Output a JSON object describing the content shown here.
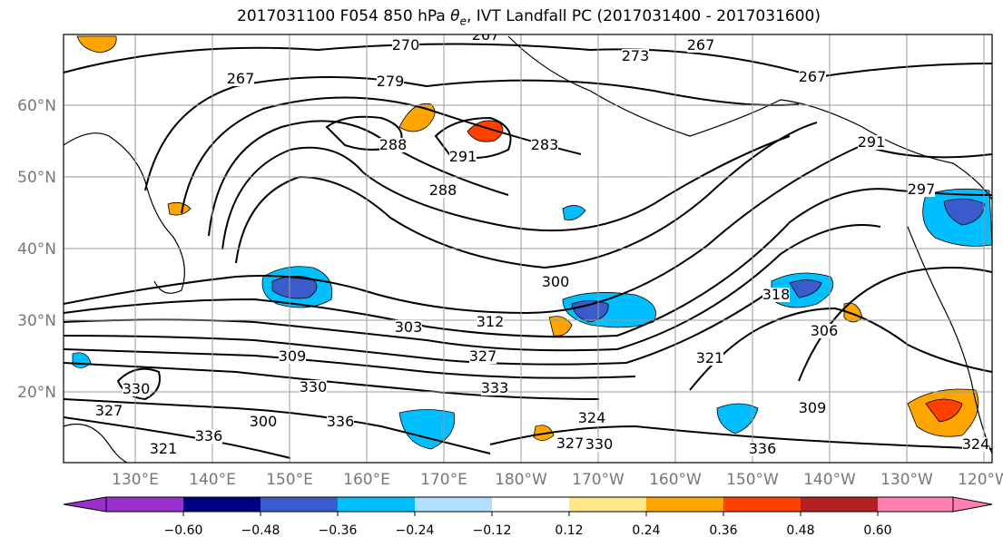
{
  "title": {
    "prefix": "2017031100 F054 850 hPa ",
    "theta_symbol": "θ",
    "theta_sub": "e",
    "suffix": ", IVT Landfall PC (2017031400 - 2017031600)"
  },
  "lat_labels": [
    "60°N",
    "50°N",
    "40°N",
    "30°N",
    "20°N"
  ],
  "lon_labels": [
    "130°E",
    "140°E",
    "150°E",
    "160°E",
    "170°E",
    "180°W",
    "170°W",
    "160°W",
    "150°W",
    "140°W",
    "130°W",
    "120°W"
  ],
  "colorbar": {
    "colors": [
      "#9932CC",
      "#000080",
      "#3A5BCC",
      "#00BFFF",
      "#B0E0FF",
      "#FFFFFF",
      "#FFE88A",
      "#FFA500",
      "#FF4000",
      "#B22222",
      "#FF80B0"
    ],
    "tick_labels": [
      "−0.60",
      "−0.48",
      "−0.36",
      "−0.24",
      "−0.12",
      "0.12",
      "0.24",
      "0.36",
      "0.48",
      "0.60"
    ]
  },
  "contour_labels": [
    "267",
    "270",
    "273",
    "267",
    "267",
    "267",
    "279",
    "288",
    "291",
    "288",
    "291",
    "283",
    "297",
    "300",
    "303",
    "309",
    "312",
    "327",
    "333",
    "330",
    "330",
    "324",
    "327",
    "321",
    "318",
    "306",
    "309",
    "336",
    "327",
    "330",
    "336",
    "336",
    "321",
    "324",
    "300"
  ]
}
